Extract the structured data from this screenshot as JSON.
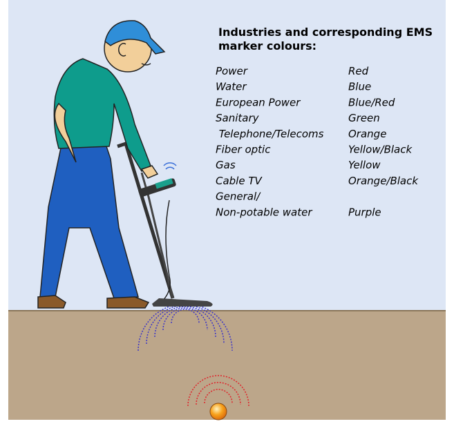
{
  "title": "Industries and corresponding EMS marker colours:",
  "rows": [
    {
      "industry": "Power",
      "colour": "Red"
    },
    {
      "industry": "Water",
      "colour": "Blue"
    },
    {
      "industry": "European Power",
      "colour": "Blue/Red"
    },
    {
      "industry": "Sanitary",
      "colour": "Green"
    },
    {
      "industry": " Telephone/Telecoms",
      "colour": "Orange"
    },
    {
      "industry": "Fiber optic",
      "colour": "Yellow/Black"
    },
    {
      "industry": "Gas",
      "colour": "Yellow"
    },
    {
      "industry": "Cable TV",
      "colour": "Orange/Black"
    },
    {
      "industry": "General/"
    },
    {
      "industry": "Non-potable water",
      "colour": "Purple"
    }
  ]
}
